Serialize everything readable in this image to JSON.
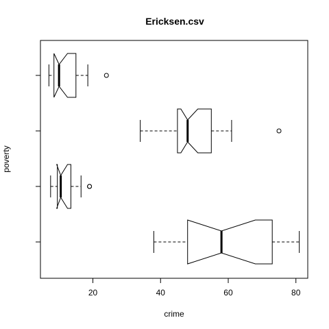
{
  "chart_data": {
    "type": "boxplot",
    "title": "Ericksen.csv",
    "xlabel": "crime",
    "ylabel": "poverty",
    "notched": true,
    "horizontal": true,
    "xlim": [
      4.5,
      83.5
    ],
    "xticks": [
      20,
      40,
      60,
      80
    ],
    "grid": false,
    "groups": [
      {
        "position": 1,
        "whisker_low": 38,
        "q1": 48,
        "median": 58,
        "q3": 73,
        "whisker_high": 81,
        "notch_low": 48,
        "notch_high": 68,
        "outliers": []
      },
      {
        "position": 2,
        "whisker_low": 7.5,
        "q1": 9.5,
        "median": 10.5,
        "q3": 13.5,
        "whisker_high": 16.5,
        "notch_low": 9.3,
        "notch_high": 12.5,
        "outliers": [
          19,
          19
        ]
      },
      {
        "position": 3,
        "whisker_low": 34,
        "q1": 45,
        "median": 48,
        "q3": 55,
        "whisker_high": 61,
        "notch_low": 46,
        "notch_high": 51,
        "outliers": [
          75
        ]
      },
      {
        "position": 4,
        "whisker_low": 7,
        "q1": 8.5,
        "median": 10,
        "q3": 15,
        "whisker_high": 18.5,
        "notch_low": 8.5,
        "notch_high": 12.5,
        "outliers": [
          24
        ]
      }
    ]
  }
}
